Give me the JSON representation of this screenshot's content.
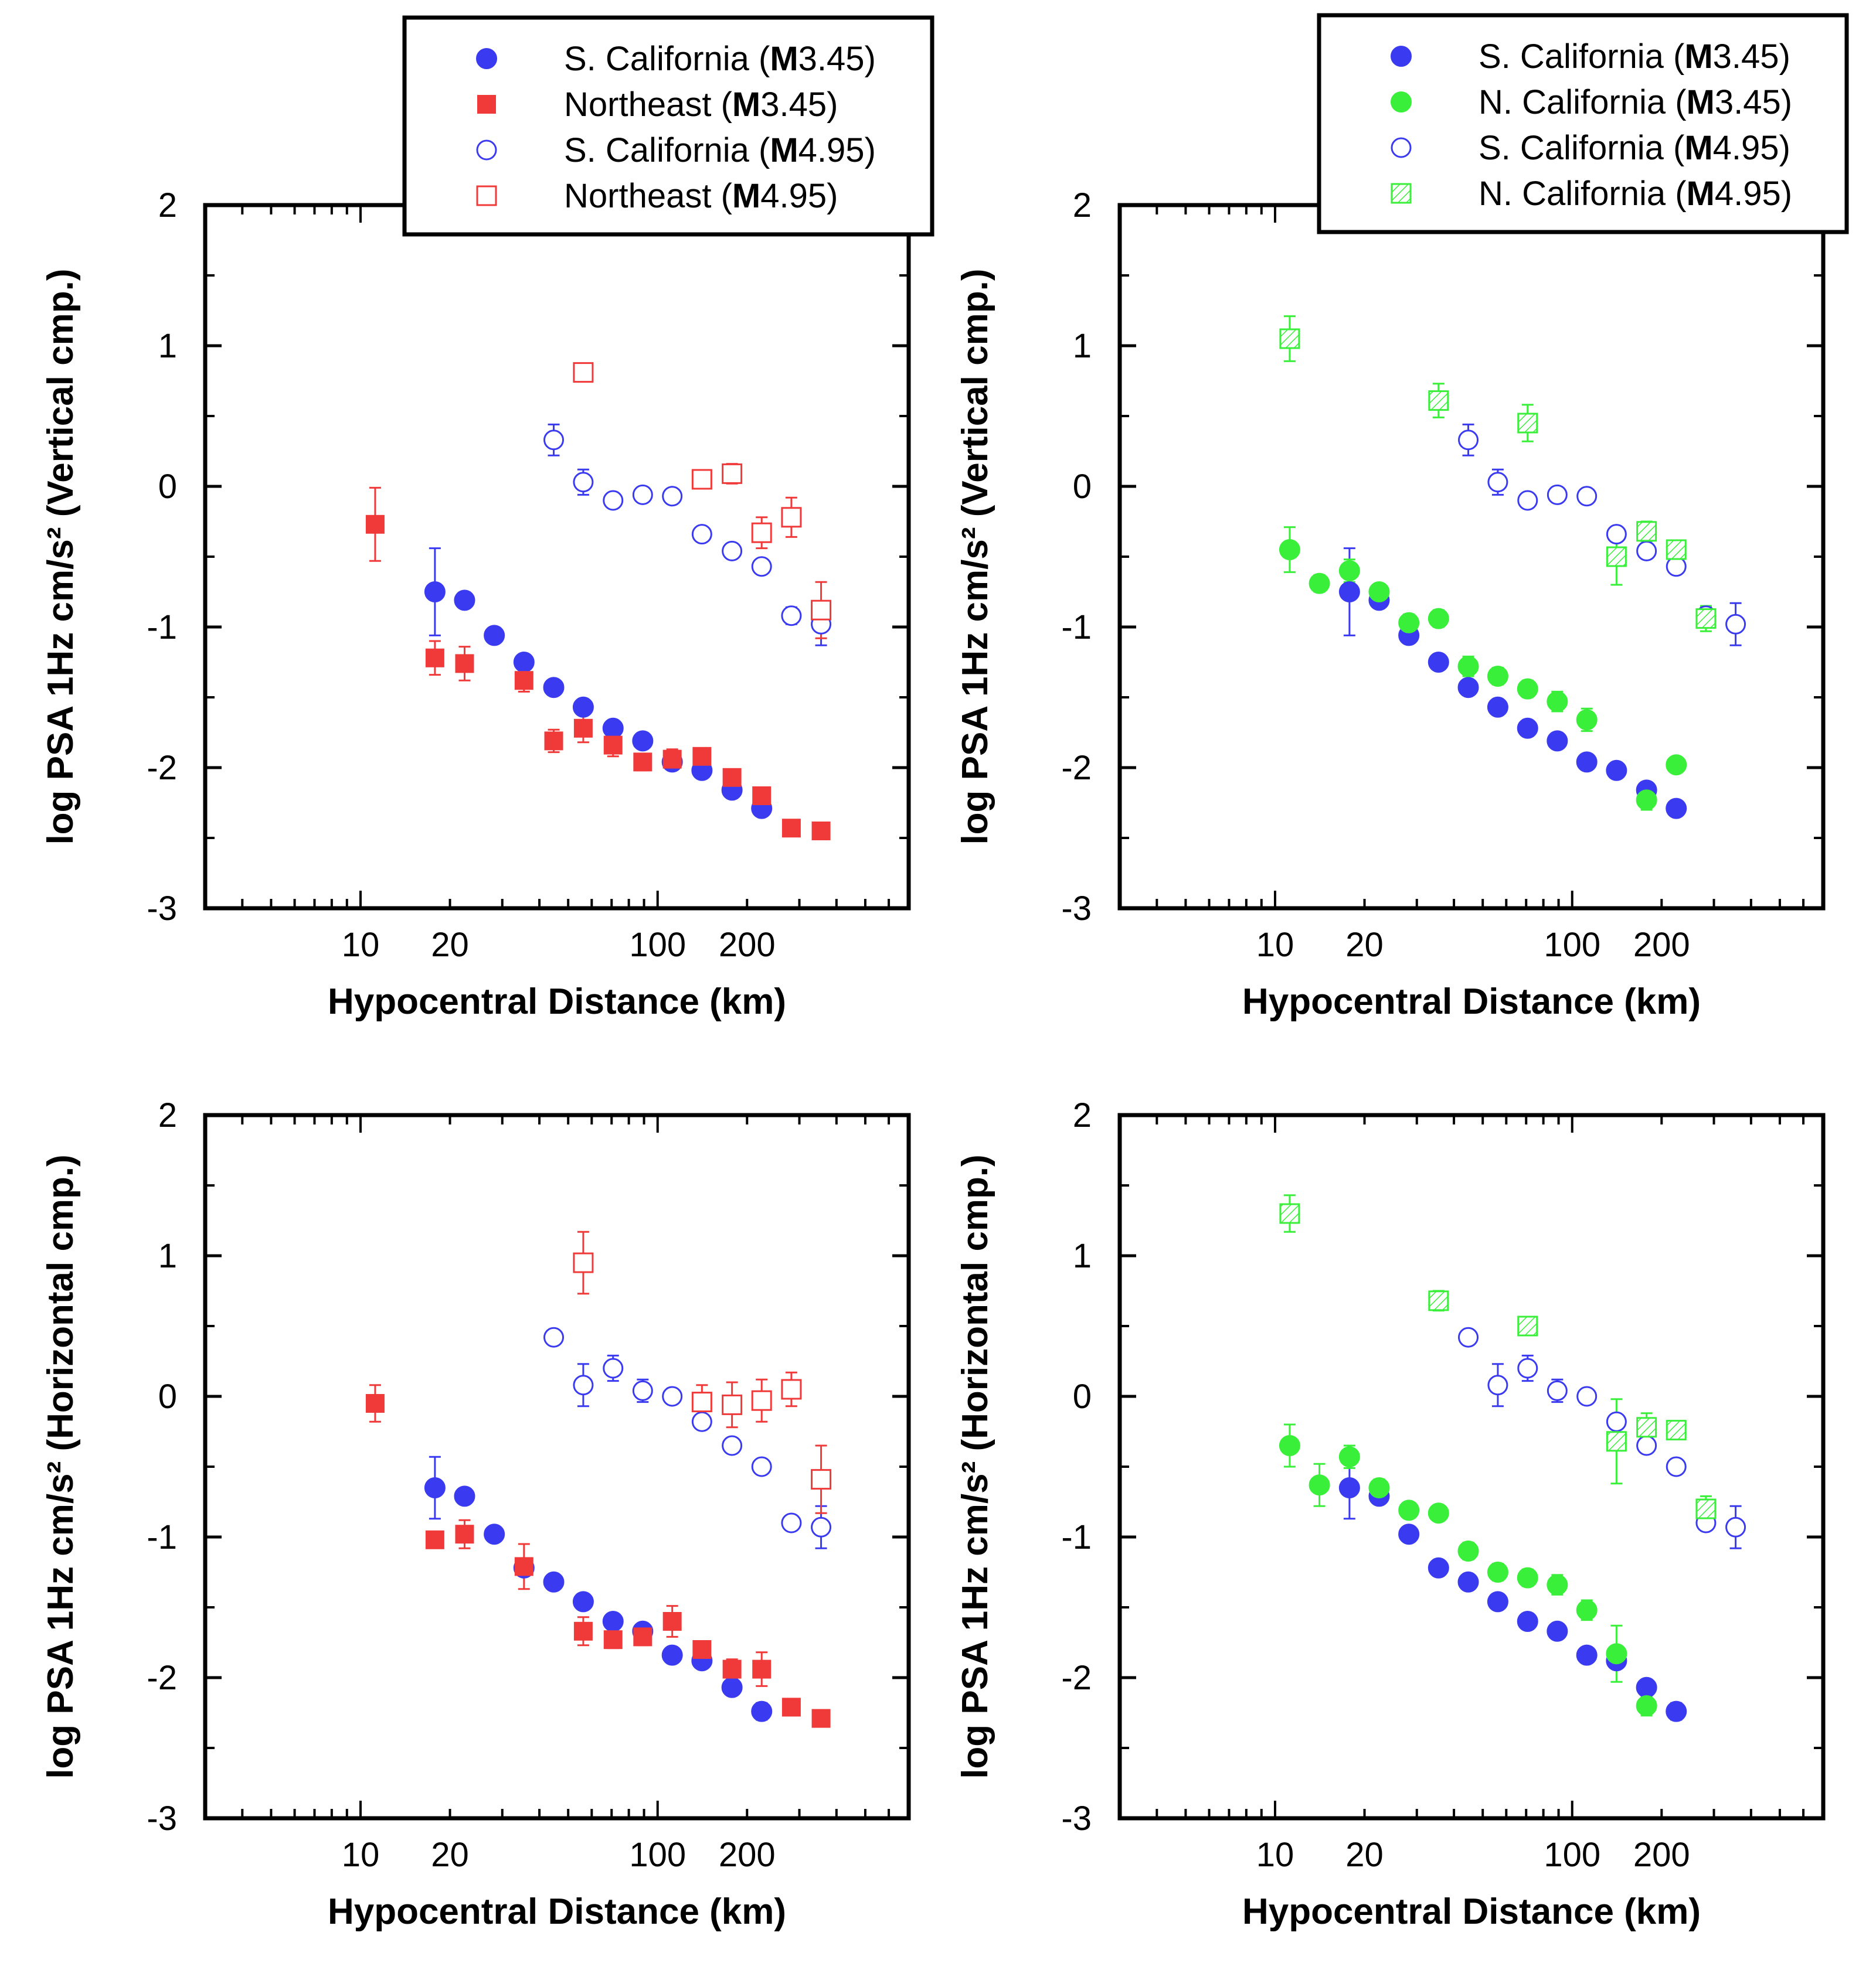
{
  "chart_data": [
    {
      "type": "scatter",
      "xlabel": "Hypocentral Distance (km)",
      "ylabel": "log PSA 1Hz cm/s² (Vertical cmp.)",
      "x_scale": "log",
      "xlim": [
        3,
        700
      ],
      "ylim": [
        -3,
        2
      ],
      "x_ticks": [
        "10",
        "20",
        "100",
        "200"
      ],
      "y_ticks": [
        "2",
        "1",
        "0",
        "-1",
        "-2",
        "-3"
      ],
      "legend": {
        "placement": "top-right",
        "entries": [
          {
            "prefix": "S. California (",
            "mag_letter": "M",
            "mag_value": "3.45",
            "suffix": ")"
          },
          {
            "prefix": "Northeast (",
            "mag_letter": "M",
            "mag_value": "3.45",
            "suffix": ")"
          },
          {
            "prefix": "S. California (",
            "mag_letter": "M",
            "mag_value": "4.95",
            "suffix": ")"
          },
          {
            "prefix": "Northeast (",
            "mag_letter": "M",
            "mag_value": "4.95",
            "suffix": ")"
          }
        ]
      },
      "series": [
        {
          "marker": "circle-filled",
          "color": "#3a3af0",
          "x": [
            17.8,
            22.4,
            28.2,
            35.5,
            44.7,
            56.2,
            70.8,
            89.1,
            112,
            141,
            178,
            224
          ],
          "y": [
            -0.75,
            -0.81,
            -1.06,
            -1.25,
            -1.43,
            -1.57,
            -1.72,
            -1.81,
            -1.96,
            -2.02,
            -2.16,
            -2.29
          ],
          "err": [
            0.31,
            0,
            0.05,
            0,
            0,
            0,
            0,
            0,
            0,
            0,
            0,
            0
          ]
        },
        {
          "marker": "square-filled",
          "color": "#f03a3a",
          "x": [
            11.2,
            17.8,
            22.4,
            35.5,
            44.7,
            56.2,
            70.8,
            89.1,
            112,
            141,
            178,
            224,
            282,
            355
          ],
          "y": [
            -0.27,
            -1.22,
            -1.26,
            -1.38,
            -1.81,
            -1.72,
            -1.84,
            -1.96,
            -1.94,
            -1.92,
            -2.07,
            -2.2,
            -2.43,
            -2.45
          ],
          "err": [
            0.26,
            0.12,
            0.12,
            0.08,
            0.08,
            0.1,
            0.08,
            0.06,
            0.07,
            0.05,
            0,
            0,
            0,
            0
          ]
        },
        {
          "marker": "circle-open",
          "color": "#3a3af0",
          "x": [
            44.7,
            56.2,
            70.8,
            89.1,
            112,
            141,
            178,
            224,
            282,
            355
          ],
          "y": [
            0.33,
            0.03,
            -0.1,
            -0.06,
            -0.07,
            -0.34,
            -0.46,
            -0.57,
            -0.92,
            -0.98
          ],
          "err": [
            0.11,
            0.09,
            0,
            0,
            0,
            0,
            0,
            0,
            0.06,
            0.15
          ]
        },
        {
          "marker": "square-open",
          "color": "#f03a3a",
          "x": [
            56.2,
            141,
            178,
            224,
            282,
            355
          ],
          "y": [
            0.81,
            0.05,
            0.09,
            -0.33,
            -0.22,
            -0.88
          ],
          "err": [
            0,
            0.06,
            0.07,
            0.11,
            0.14,
            0.2
          ]
        }
      ]
    },
    {
      "type": "scatter",
      "xlabel": "Hypocentral Distance (km)",
      "ylabel": "log PSA 1Hz cm/s² (Vertical cmp.)",
      "x_scale": "log",
      "xlim": [
        3,
        700
      ],
      "ylim": [
        -3,
        2
      ],
      "x_ticks": [
        "10",
        "20",
        "100",
        "200"
      ],
      "y_ticks": [
        "2",
        "1",
        "0",
        "-1",
        "-2",
        "-3"
      ],
      "legend": {
        "placement": "top-right",
        "entries": [
          {
            "prefix": "S. California (",
            "mag_letter": "M",
            "mag_value": "3.45",
            "suffix": ")"
          },
          {
            "prefix": "N. California (",
            "mag_letter": "M",
            "mag_value": "3.45",
            "suffix": ")"
          },
          {
            "prefix": "S. California (",
            "mag_letter": "M",
            "mag_value": "4.95",
            "suffix": ")"
          },
          {
            "prefix": "N. California (",
            "mag_letter": "M",
            "mag_value": "4.95",
            "suffix": ")"
          }
        ]
      },
      "series": [
        {
          "marker": "circle-filled",
          "color": "#3a3af0",
          "x": [
            17.8,
            22.4,
            28.2,
            35.5,
            44.7,
            56.2,
            70.8,
            89.1,
            112,
            141,
            178,
            224
          ],
          "y": [
            -0.75,
            -0.81,
            -1.06,
            -1.25,
            -1.43,
            -1.57,
            -1.72,
            -1.81,
            -1.96,
            -2.02,
            -2.16,
            -2.29
          ],
          "err": [
            0.31,
            0,
            0.05,
            0,
            0,
            0,
            0,
            0,
            0,
            0,
            0,
            0
          ]
        },
        {
          "marker": "circle-filled",
          "color": "#3aef3a",
          "x": [
            11.2,
            14.1,
            17.8,
            22.4,
            28.2,
            35.5,
            44.7,
            56.2,
            70.8,
            89.1,
            112,
            178,
            224
          ],
          "y": [
            -0.45,
            -0.69,
            -0.6,
            -0.75,
            -0.97,
            -0.94,
            -1.28,
            -1.35,
            -1.44,
            -1.53,
            -1.66,
            -2.23,
            -1.98
          ],
          "err": [
            0.16,
            0.06,
            0.08,
            0.05,
            0.06,
            0.06,
            0.07,
            0.06,
            0.06,
            0.07,
            0.08,
            0.07,
            0.05
          ]
        },
        {
          "marker": "circle-open",
          "color": "#3a3af0",
          "x": [
            44.7,
            56.2,
            70.8,
            89.1,
            112,
            141,
            178,
            224,
            282,
            355
          ],
          "y": [
            0.33,
            0.03,
            -0.1,
            -0.06,
            -0.07,
            -0.34,
            -0.46,
            -0.57,
            -0.92,
            -0.98
          ],
          "err": [
            0.11,
            0.09,
            0,
            0,
            0,
            0,
            0,
            0,
            0.06,
            0.15
          ]
        },
        {
          "marker": "square-hatched",
          "color": "#3aef3a",
          "x": [
            11.2,
            35.5,
            70.8,
            141,
            178,
            224,
            282
          ],
          "y": [
            1.05,
            0.61,
            0.45,
            -0.5,
            -0.32,
            -0.45,
            -0.94
          ],
          "err": [
            0.16,
            0.12,
            0.13,
            0.2,
            0.07,
            0.06,
            0.09
          ]
        }
      ]
    },
    {
      "type": "scatter",
      "xlabel": "Hypocentral Distance (km)",
      "ylabel": "log PSA 1Hz cm/s² (Horizontal cmp.)",
      "x_scale": "log",
      "xlim": [
        3,
        700
      ],
      "ylim": [
        -3,
        2
      ],
      "x_ticks": [
        "10",
        "20",
        "100",
        "200"
      ],
      "y_ticks": [
        "2",
        "1",
        "0",
        "-1",
        "-2",
        "-3"
      ],
      "series": [
        {
          "marker": "circle-filled",
          "color": "#3a3af0",
          "x": [
            17.8,
            22.4,
            28.2,
            35.5,
            44.7,
            56.2,
            70.8,
            89.1,
            112,
            141,
            178,
            224
          ],
          "y": [
            -0.65,
            -0.71,
            -0.98,
            -1.22,
            -1.32,
            -1.46,
            -1.6,
            -1.67,
            -1.84,
            -1.88,
            -2.07,
            -2.24
          ],
          "err": [
            0.22,
            0,
            0,
            0,
            0,
            0,
            0,
            0,
            0,
            0,
            0,
            0.06
          ]
        },
        {
          "marker": "square-filled",
          "color": "#f03a3a",
          "x": [
            11.2,
            17.8,
            22.4,
            35.5,
            56.2,
            70.8,
            89.1,
            112,
            141,
            178,
            224,
            282,
            355
          ],
          "y": [
            -0.05,
            -1.02,
            -0.98,
            -1.21,
            -1.67,
            -1.73,
            -1.71,
            -1.6,
            -1.8,
            -1.94,
            -1.94,
            -2.21,
            -2.29
          ],
          "err": [
            0.13,
            0,
            0.1,
            0.16,
            0.1,
            0.06,
            0.06,
            0.11,
            0.06,
            0.07,
            0.12,
            0,
            0
          ]
        },
        {
          "marker": "circle-open",
          "color": "#3a3af0",
          "x": [
            44.7,
            56.2,
            70.8,
            89.1,
            112,
            141,
            178,
            224,
            282,
            355
          ],
          "y": [
            0.42,
            0.08,
            0.2,
            0.04,
            0.0,
            -0.18,
            -0.35,
            -0.5,
            -0.9,
            -0.93
          ],
          "err": [
            0,
            0.15,
            0.09,
            0.08,
            0,
            0,
            0,
            0,
            0,
            0.15
          ]
        },
        {
          "marker": "square-open",
          "color": "#f03a3a",
          "x": [
            56.2,
            141,
            178,
            224,
            282,
            355
          ],
          "y": [
            0.95,
            -0.04,
            -0.06,
            -0.03,
            0.05,
            -0.59
          ],
          "err": [
            0.22,
            0.12,
            0.16,
            0.15,
            0.12,
            0.24
          ]
        }
      ]
    },
    {
      "type": "scatter",
      "xlabel": "Hypocentral Distance (km)",
      "ylabel": "log PSA 1Hz cm/s² (Horizontal cmp.)",
      "x_scale": "log",
      "xlim": [
        3,
        700
      ],
      "ylim": [
        -3,
        2
      ],
      "x_ticks": [
        "10",
        "20",
        "100",
        "200"
      ],
      "y_ticks": [
        "2",
        "1",
        "0",
        "-1",
        "-2",
        "-3"
      ],
      "series": [
        {
          "marker": "circle-filled",
          "color": "#3a3af0",
          "x": [
            17.8,
            22.4,
            28.2,
            35.5,
            44.7,
            56.2,
            70.8,
            89.1,
            112,
            141,
            178,
            224
          ],
          "y": [
            -0.65,
            -0.71,
            -0.98,
            -1.22,
            -1.32,
            -1.46,
            -1.6,
            -1.67,
            -1.84,
            -1.88,
            -2.07,
            -2.24
          ],
          "err": [
            0.22,
            0,
            0,
            0,
            0,
            0,
            0,
            0,
            0,
            0,
            0,
            0.06
          ]
        },
        {
          "marker": "circle-filled",
          "color": "#3aef3a",
          "x": [
            11.2,
            14.1,
            17.8,
            22.4,
            28.2,
            35.5,
            44.7,
            56.2,
            70.8,
            89.1,
            112,
            141,
            178
          ],
          "y": [
            -0.35,
            -0.63,
            -0.43,
            -0.65,
            -0.81,
            -0.83,
            -1.1,
            -1.25,
            -1.29,
            -1.34,
            -1.52,
            -1.83,
            -2.2
          ],
          "err": [
            0.15,
            0.15,
            0.08,
            0.06,
            0.05,
            0.05,
            0.06,
            0.06,
            0.06,
            0.07,
            0.07,
            0.2,
            0.07
          ]
        },
        {
          "marker": "circle-open",
          "color": "#3a3af0",
          "x": [
            44.7,
            56.2,
            70.8,
            89.1,
            112,
            141,
            178,
            224,
            282,
            355
          ],
          "y": [
            0.42,
            0.08,
            0.2,
            0.04,
            0.0,
            -0.18,
            -0.35,
            -0.5,
            -0.9,
            -0.93
          ],
          "err": [
            0,
            0.15,
            0.09,
            0.08,
            0,
            0,
            0,
            0,
            0,
            0.15
          ]
        },
        {
          "marker": "square-hatched",
          "color": "#3aef3a",
          "x": [
            11.2,
            35.5,
            70.8,
            141,
            178,
            224,
            282
          ],
          "y": [
            1.3,
            0.68,
            0.5,
            -0.32,
            -0.22,
            -0.24,
            -0.8
          ],
          "err": [
            0.13,
            0.07,
            0,
            0.3,
            0.1,
            0.06,
            0.09
          ]
        }
      ]
    }
  ]
}
